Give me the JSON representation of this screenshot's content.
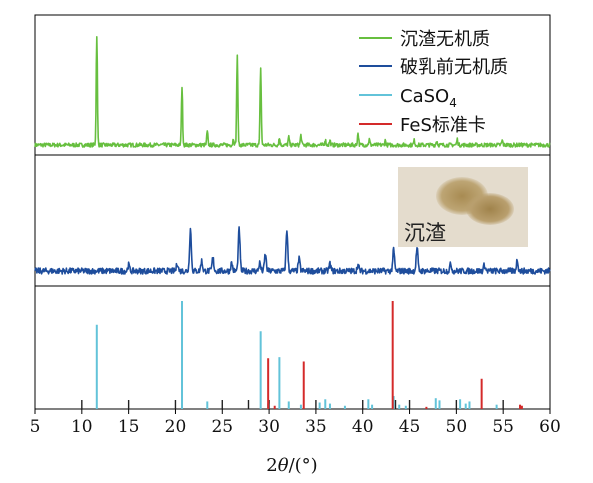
{
  "chart_data": {
    "type": "line",
    "xlabel": "2θ/(°)",
    "xlim": [
      5,
      60
    ],
    "xticks": [
      5,
      10,
      15,
      20,
      25,
      30,
      35,
      40,
      45,
      50,
      55,
      60
    ],
    "legend_position": "top-right",
    "series": [
      {
        "name": "沉渣无机质",
        "color": "#67bf3f",
        "panel": "top",
        "peaks": [
          {
            "x": 11.6,
            "h": 1.0
          },
          {
            "x": 20.7,
            "h": 0.53
          },
          {
            "x": 23.4,
            "h": 0.12
          },
          {
            "x": 26.2,
            "h": 0.06
          },
          {
            "x": 26.6,
            "h": 0.82
          },
          {
            "x": 29.1,
            "h": 0.71
          },
          {
            "x": 31.1,
            "h": 0.06
          },
          {
            "x": 32.1,
            "h": 0.07
          },
          {
            "x": 33.4,
            "h": 0.09
          },
          {
            "x": 36.0,
            "h": 0.05
          },
          {
            "x": 36.5,
            "h": 0.04
          },
          {
            "x": 39.5,
            "h": 0.11
          },
          {
            "x": 40.7,
            "h": 0.05
          },
          {
            "x": 42.4,
            "h": 0.04
          },
          {
            "x": 45.5,
            "h": 0.04
          },
          {
            "x": 47.9,
            "h": 0.04
          },
          {
            "x": 50.1,
            "h": 0.05
          },
          {
            "x": 54.9,
            "h": 0.04
          }
        ]
      },
      {
        "name": "破乳前无机质",
        "color": "#1e4d9c",
        "panel": "middle",
        "peaks": [
          {
            "x": 15.0,
            "h": 0.06
          },
          {
            "x": 20.2,
            "h": 0.08
          },
          {
            "x": 21.6,
            "h": 0.42
          },
          {
            "x": 22.8,
            "h": 0.1
          },
          {
            "x": 24.0,
            "h": 0.13
          },
          {
            "x": 26.0,
            "h": 0.08
          },
          {
            "x": 26.8,
            "h": 0.42
          },
          {
            "x": 29.0,
            "h": 0.08
          },
          {
            "x": 29.6,
            "h": 0.17
          },
          {
            "x": 31.9,
            "h": 0.41
          },
          {
            "x": 33.2,
            "h": 0.12
          },
          {
            "x": 36.5,
            "h": 0.07
          },
          {
            "x": 39.5,
            "h": 0.06
          },
          {
            "x": 43.3,
            "h": 0.21
          },
          {
            "x": 45.8,
            "h": 0.23
          },
          {
            "x": 49.4,
            "h": 0.07
          },
          {
            "x": 53.0,
            "h": 0.06
          },
          {
            "x": 56.5,
            "h": 0.11
          }
        ]
      },
      {
        "name": "CaSO4",
        "color": "#62c3d9",
        "panel": "bottom",
        "type": "stick",
        "sticks": [
          {
            "x": 11.6,
            "h": 0.78
          },
          {
            "x": 20.7,
            "h": 1.0
          },
          {
            "x": 23.4,
            "h": 0.07
          },
          {
            "x": 29.1,
            "h": 0.72
          },
          {
            "x": 29.9,
            "h": 0.05
          },
          {
            "x": 31.1,
            "h": 0.48
          },
          {
            "x": 32.1,
            "h": 0.07
          },
          {
            "x": 33.4,
            "h": 0.04
          },
          {
            "x": 35.4,
            "h": 0.06
          },
          {
            "x": 36.0,
            "h": 0.09
          },
          {
            "x": 36.5,
            "h": 0.05
          },
          {
            "x": 38.1,
            "h": 0.03
          },
          {
            "x": 40.6,
            "h": 0.09
          },
          {
            "x": 41.0,
            "h": 0.04
          },
          {
            "x": 43.3,
            "h": 0.12
          },
          {
            "x": 43.9,
            "h": 0.04
          },
          {
            "x": 44.6,
            "h": 0.03
          },
          {
            "x": 47.8,
            "h": 0.1
          },
          {
            "x": 48.2,
            "h": 0.08
          },
          {
            "x": 50.4,
            "h": 0.09
          },
          {
            "x": 51.0,
            "h": 0.05
          },
          {
            "x": 51.4,
            "h": 0.07
          },
          {
            "x": 54.3,
            "h": 0.04
          },
          {
            "x": 56.8,
            "h": 0.03
          }
        ]
      },
      {
        "name": "FeS标准卡",
        "color": "#d42a2a",
        "panel": "bottom",
        "type": "stick",
        "sticks": [
          {
            "x": 29.9,
            "h": 0.47
          },
          {
            "x": 30.6,
            "h": 0.03
          },
          {
            "x": 33.7,
            "h": 0.44
          },
          {
            "x": 43.2,
            "h": 1.0
          },
          {
            "x": 46.8,
            "h": 0.02
          },
          {
            "x": 52.7,
            "h": 0.28
          },
          {
            "x": 56.8,
            "h": 0.04
          },
          {
            "x": 57.0,
            "h": 0.03
          }
        ]
      }
    ],
    "black_ticks": [
      10,
      15,
      20,
      25,
      27.8,
      30,
      35,
      40,
      43.5,
      45,
      50,
      55
    ],
    "inset": {
      "label": "沉渣"
    }
  }
}
